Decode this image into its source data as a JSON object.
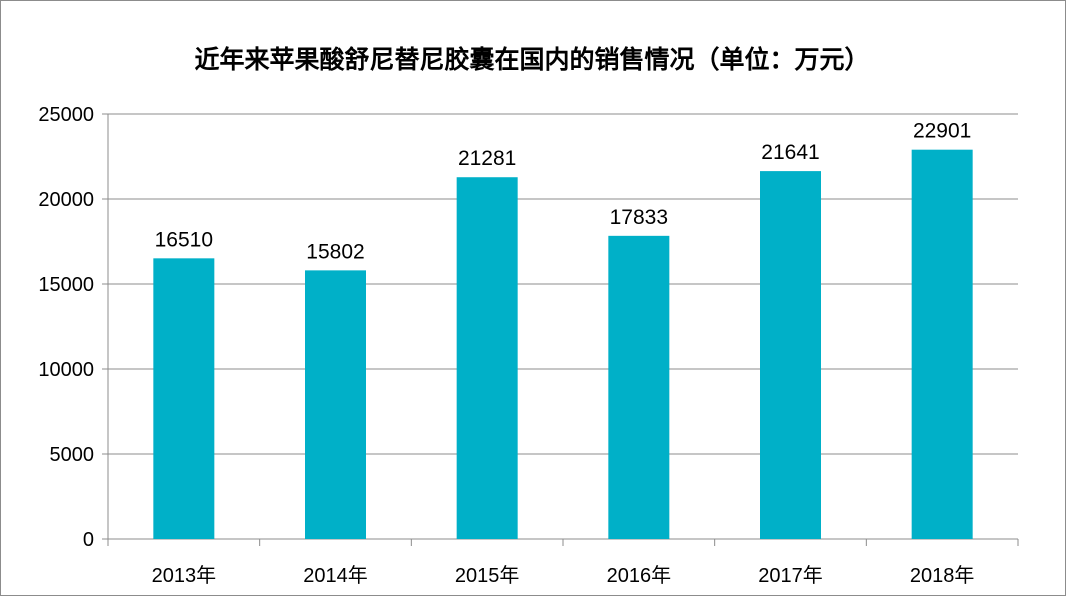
{
  "chart_data": {
    "type": "bar",
    "title": "近年来苹果酸舒尼替尼胶囊在国内的销售情况（单位：万元）",
    "categories": [
      "2013年",
      "2014年",
      "2015年",
      "2016年",
      "2017年",
      "2018年"
    ],
    "values": [
      16510,
      15802,
      21281,
      17833,
      21641,
      22901
    ],
    "data_labels": [
      "16510",
      "15802",
      "21281",
      "17833",
      "21641",
      "22901"
    ],
    "ylim": [
      0,
      25000
    ],
    "yticks": [
      "0",
      "5000",
      "10000",
      "15000",
      "20000",
      "25000"
    ],
    "xlabel": "",
    "ylabel": "",
    "grid": true,
    "legend": "none",
    "bar_color": "#00b0c8",
    "grid_color": "#8c8c8c"
  }
}
